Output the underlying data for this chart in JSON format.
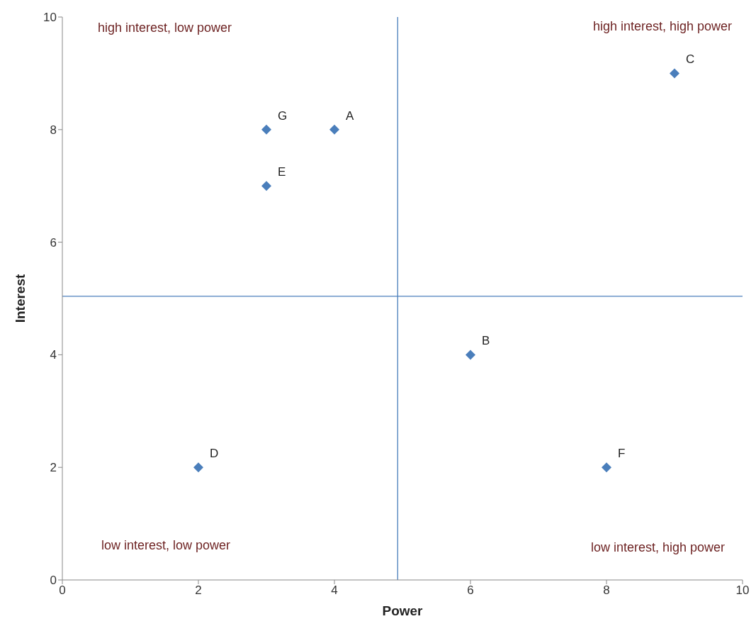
{
  "chart_data": {
    "type": "scatter",
    "xlabel": "Power",
    "ylabel": "Interest",
    "x": [
      4,
      6,
      9,
      2,
      3,
      8,
      3
    ],
    "values": [
      8,
      4,
      9,
      2,
      7,
      2,
      8
    ],
    "value_labels": [
      "A",
      "B",
      "C",
      "D",
      "E",
      "F",
      "G"
    ],
    "color": "#4a7ebb",
    "marker": "diamond",
    "grid": false,
    "xlim": [
      0,
      10
    ],
    "xticks": [
      0,
      2,
      4,
      6,
      8,
      10
    ],
    "ylim": [
      0,
      10
    ],
    "yticks": [
      0,
      2,
      4,
      6,
      8,
      10
    ],
    "ref_lines": [
      {
        "axis": "x",
        "value": 4.93,
        "color": "#4a7ebb"
      },
      {
        "axis": "y",
        "value": 5.04,
        "color": "#4a7ebb"
      }
    ],
    "annotations": [
      "high interest, low power",
      "high interest, high power",
      "low interest, low power",
      "low interest, high power"
    ]
  }
}
